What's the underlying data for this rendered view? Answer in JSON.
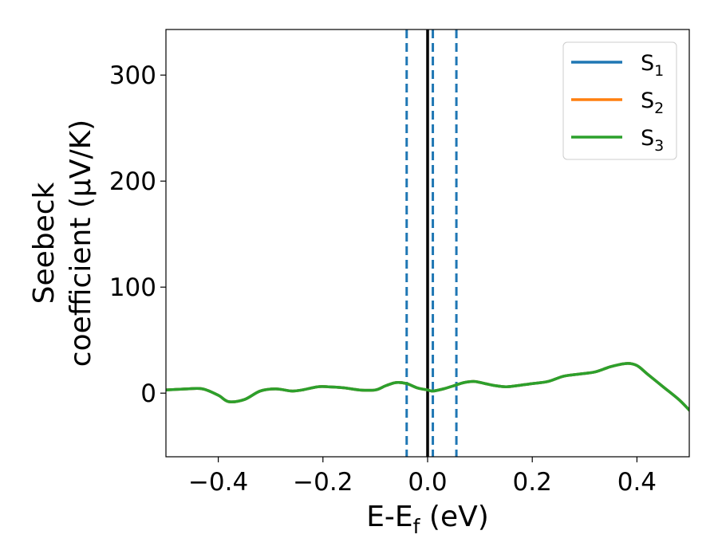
{
  "colors": {
    "s1": "#1f77b4",
    "s2": "#ff7f0e",
    "s3": "#2ca02c",
    "fermi_line": "#000000",
    "marker_lines": "#1f77b4"
  },
  "chart_data": {
    "type": "line",
    "title": "",
    "xlabel": {
      "prefix": "E-E",
      "subscript": "f",
      "suffix": " (eV)"
    },
    "ylabel": {
      "line1": "Seebeck",
      "line2": "coefficient  (μV/K)"
    },
    "xlim": [
      -0.5,
      0.5
    ],
    "ylim": [
      -60,
      343
    ],
    "x_ticks": [
      {
        "value": -0.4,
        "label": "−0.4"
      },
      {
        "value": -0.2,
        "label": "−0.2"
      },
      {
        "value": 0.0,
        "label": "0.0"
      },
      {
        "value": 0.2,
        "label": "0.2"
      },
      {
        "value": 0.4,
        "label": "0.4"
      }
    ],
    "y_ticks": [
      {
        "value": 0,
        "label": "0"
      },
      {
        "value": 100,
        "label": "100"
      },
      {
        "value": 200,
        "label": "200"
      },
      {
        "value": 300,
        "label": "300"
      }
    ],
    "grid": false,
    "legend_position": "top-right",
    "x": [
      -0.5,
      -0.46,
      -0.43,
      -0.4,
      -0.38,
      -0.35,
      -0.32,
      -0.29,
      -0.26,
      -0.24,
      -0.21,
      -0.19,
      -0.16,
      -0.13,
      -0.1,
      -0.08,
      -0.06,
      -0.04,
      -0.02,
      0.0,
      0.01,
      0.03,
      0.05,
      0.07,
      0.09,
      0.11,
      0.13,
      0.15,
      0.17,
      0.2,
      0.23,
      0.26,
      0.29,
      0.32,
      0.35,
      0.38,
      0.4,
      0.42,
      0.45,
      0.48,
      0.5
    ],
    "series": [
      {
        "name": {
          "base": "S",
          "sub": "1"
        },
        "color_key": "s1",
        "values": [
          3,
          4,
          4,
          -2,
          -8,
          -6,
          2,
          4,
          2,
          3,
          6,
          6,
          5,
          3,
          3,
          7,
          10,
          9,
          5,
          3,
          2,
          4,
          7,
          10,
          11,
          9,
          7,
          6,
          7,
          9,
          11,
          16,
          18,
          20,
          25,
          28,
          26,
          18,
          6,
          -6,
          -16
        ]
      },
      {
        "name": {
          "base": "S",
          "sub": "2"
        },
        "color_key": "s2",
        "values": [
          3,
          4,
          4,
          -2,
          -8,
          -6,
          2,
          4,
          2,
          3,
          6,
          6,
          5,
          3,
          3,
          7,
          10,
          9,
          5,
          3,
          2,
          4,
          7,
          10,
          11,
          9,
          7,
          6,
          7,
          9,
          11,
          16,
          18,
          20,
          25,
          28,
          26,
          18,
          6,
          -6,
          -16
        ]
      },
      {
        "name": {
          "base": "S",
          "sub": "3"
        },
        "color_key": "s3",
        "values": [
          3,
          4,
          4,
          -2,
          -8,
          -6,
          2,
          4,
          2,
          3,
          6,
          6,
          5,
          3,
          3,
          7,
          10,
          9,
          5,
          3,
          2,
          4,
          7,
          10,
          11,
          9,
          7,
          6,
          7,
          9,
          11,
          16,
          18,
          20,
          25,
          28,
          26,
          18,
          6,
          -6,
          -16
        ]
      }
    ],
    "vertical_lines": [
      {
        "x": 0.0,
        "style": "solid",
        "color_key": "fermi_line"
      },
      {
        "x": -0.04,
        "style": "dashed",
        "color_key": "marker_lines"
      },
      {
        "x": 0.01,
        "style": "dashed",
        "color_key": "marker_lines"
      },
      {
        "x": 0.055,
        "style": "dashed",
        "color_key": "marker_lines"
      }
    ]
  }
}
